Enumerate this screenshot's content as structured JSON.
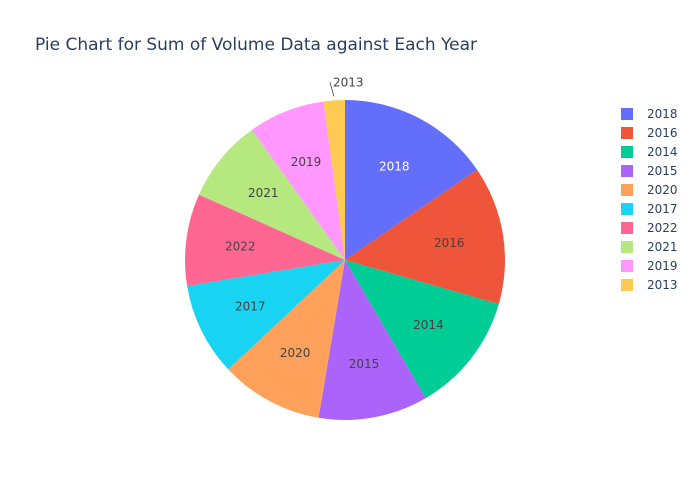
{
  "chart_data": {
    "type": "pie",
    "title": "Pie Chart for Sum of Volume Data against Each Year",
    "legend_position": "right",
    "direction": "clockwise",
    "start_angle_deg": 90,
    "slices": [
      {
        "label": "2018",
        "value": 15.8,
        "color": "#636efa",
        "text_color": "#ffffff"
      },
      {
        "label": "2016",
        "value": 14.3,
        "color": "#EF553B",
        "text_color": "#444444"
      },
      {
        "label": "2014",
        "value": 12.4,
        "color": "#00cc96",
        "text_color": "#444444"
      },
      {
        "label": "2015",
        "value": 11.3,
        "color": "#ab63fa",
        "text_color": "#444444"
      },
      {
        "label": "2020",
        "value": 10.6,
        "color": "#FFA15A",
        "text_color": "#444444"
      },
      {
        "label": "2017",
        "value": 9.6,
        "color": "#19d3f3",
        "text_color": "#444444"
      },
      {
        "label": "2022",
        "value": 9.5,
        "color": "#FF6692",
        "text_color": "#444444"
      },
      {
        "label": "2021",
        "value": 8.6,
        "color": "#B6E880",
        "text_color": "#444444"
      },
      {
        "label": "2019",
        "value": 7.9,
        "color": "#FF97FF",
        "text_color": "#444444"
      },
      {
        "label": "2013",
        "value": 2.2,
        "color": "#FECB52",
        "text_color": "#444444"
      }
    ]
  }
}
